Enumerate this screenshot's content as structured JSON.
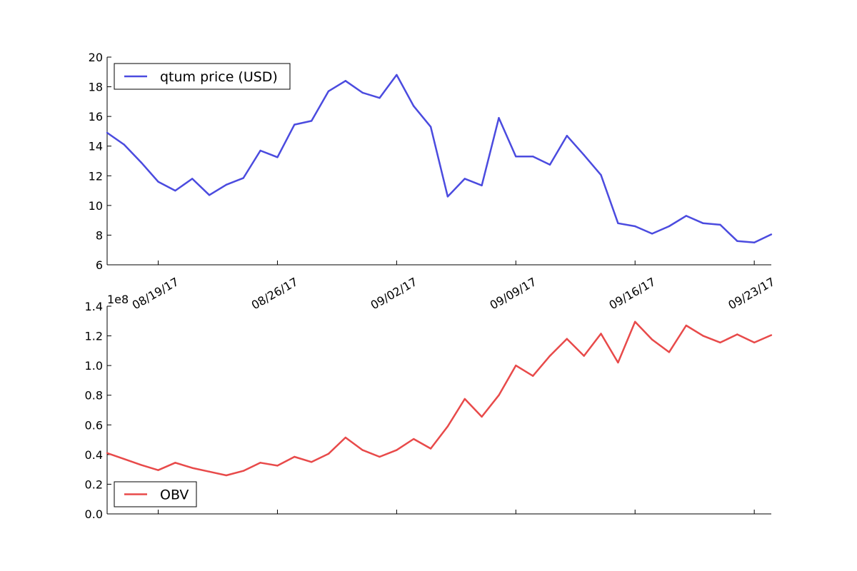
{
  "chart_data": [
    {
      "type": "line",
      "x": [
        "08/16/17",
        "08/17/17",
        "08/18/17",
        "08/19/17",
        "08/20/17",
        "08/21/17",
        "08/22/17",
        "08/23/17",
        "08/24/17",
        "08/25/17",
        "08/26/17",
        "08/27/17",
        "08/28/17",
        "08/29/17",
        "08/30/17",
        "08/31/17",
        "09/01/17",
        "09/02/17",
        "09/03/17",
        "09/04/17",
        "09/05/17",
        "09/06/17",
        "09/07/17",
        "09/08/17",
        "09/09/17",
        "09/10/17",
        "09/11/17",
        "09/12/17",
        "09/13/17",
        "09/14/17",
        "09/15/17",
        "09/16/17",
        "09/17/17",
        "09/18/17",
        "09/19/17",
        "09/20/17",
        "09/21/17",
        "09/22/17",
        "09/23/17",
        "09/24/17"
      ],
      "series": [
        {
          "name": "qtum price (USD)",
          "color": "#4b4bdf",
          "values": [
            14.9,
            14.1,
            12.9,
            11.6,
            11.0,
            11.8,
            10.7,
            11.4,
            11.85,
            13.7,
            13.25,
            15.45,
            15.7,
            17.7,
            18.4,
            17.6,
            17.25,
            18.8,
            16.7,
            15.3,
            10.6,
            11.8,
            11.35,
            15.9,
            13.3,
            13.3,
            12.75,
            14.7,
            13.4,
            12.05,
            8.8,
            8.6,
            8.1,
            8.6,
            9.3,
            8.8,
            8.7,
            7.6,
            7.5,
            8.05
          ]
        }
      ],
      "ylim": [
        6,
        20
      ],
      "yticks": [
        "6",
        "8",
        "10",
        "12",
        "14",
        "16",
        "18",
        "20"
      ],
      "xtick_labels": [
        "08/19/17",
        "08/26/17",
        "09/02/17",
        "09/09/17",
        "09/16/17",
        "09/23/17"
      ],
      "xlabel": "",
      "ylabel": "",
      "legend": "upper-left",
      "grid": false
    },
    {
      "type": "line",
      "x": [
        "08/16/17",
        "08/17/17",
        "08/18/17",
        "08/19/17",
        "08/20/17",
        "08/21/17",
        "08/22/17",
        "08/23/17",
        "08/24/17",
        "08/25/17",
        "08/26/17",
        "08/27/17",
        "08/28/17",
        "08/29/17",
        "08/30/17",
        "08/31/17",
        "09/01/17",
        "09/02/17",
        "09/03/17",
        "09/04/17",
        "09/05/17",
        "09/06/17",
        "09/07/17",
        "09/08/17",
        "09/09/17",
        "09/10/17",
        "09/11/17",
        "09/12/17",
        "09/13/17",
        "09/14/17",
        "09/15/17",
        "09/16/17",
        "09/17/17",
        "09/18/17",
        "09/19/17",
        "09/20/17",
        "09/21/17",
        "09/22/17",
        "09/23/17",
        "09/24/17"
      ],
      "series": [
        {
          "name": "OBV",
          "color": "#e84a4a",
          "values": [
            0.41,
            0.37,
            0.33,
            0.295,
            0.345,
            0.31,
            0.285,
            0.26,
            0.29,
            0.345,
            0.325,
            0.385,
            0.35,
            0.405,
            0.515,
            0.43,
            0.385,
            0.43,
            0.505,
            0.44,
            0.59,
            0.775,
            0.655,
            0.8,
            1.0,
            0.93,
            1.065,
            1.18,
            1.065,
            1.215,
            1.02,
            1.295,
            1.175,
            1.09,
            1.27,
            1.2,
            1.155,
            1.21,
            1.155,
            1.205
          ]
        }
      ],
      "ylim": [
        0,
        1.4
      ],
      "yticks": [
        "0.0",
        "0.2",
        "0.4",
        "0.6",
        "0.8",
        "1.0",
        "1.2",
        "1.4"
      ],
      "y_offset_label": "1e8",
      "xlabel": "",
      "ylabel": "",
      "legend": "lower-left",
      "grid": false
    }
  ]
}
